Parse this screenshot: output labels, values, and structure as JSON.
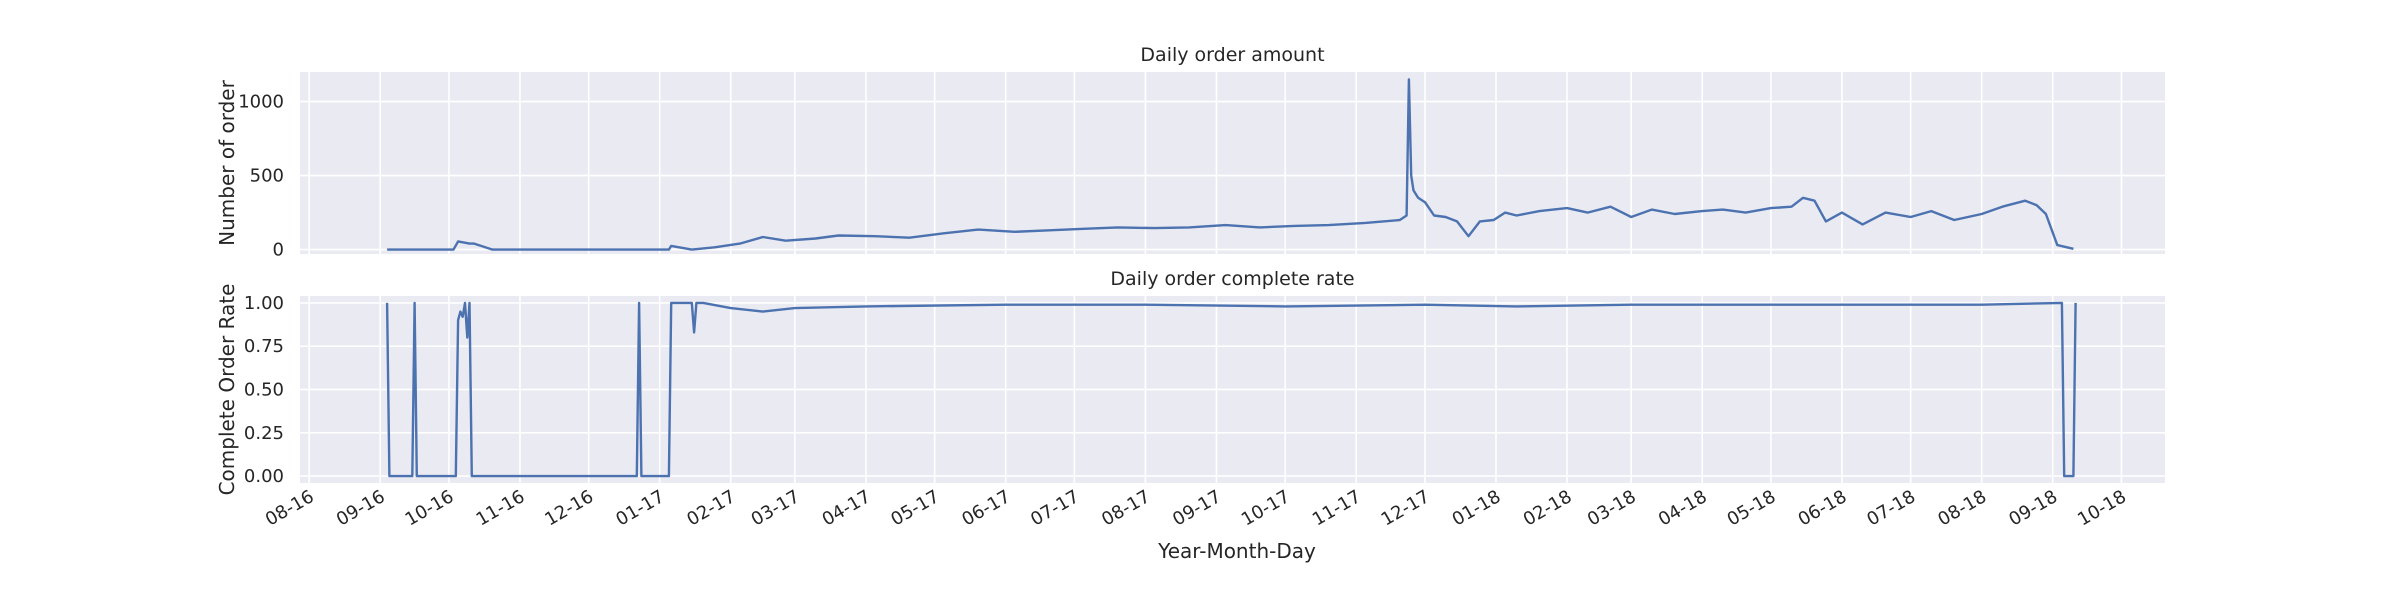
{
  "chart_data": [
    {
      "type": "line",
      "title": "Daily order amount",
      "xlabel": "",
      "ylabel": "Number of order",
      "ylim": [
        -30,
        1200
      ],
      "yticks": [
        0,
        500,
        1000
      ],
      "grid": true,
      "x": [
        "2016-09-04",
        "2016-10-03",
        "2016-10-05",
        "2016-10-10",
        "2016-10-12",
        "2016-10-20",
        "2016-12-23",
        "2017-01-05",
        "2017-01-06",
        "2017-01-15",
        "2017-01-25",
        "2017-02-05",
        "2017-02-15",
        "2017-02-25",
        "2017-03-10",
        "2017-03-20",
        "2017-04-05",
        "2017-04-20",
        "2017-05-05",
        "2017-05-20",
        "2017-06-05",
        "2017-06-20",
        "2017-07-05",
        "2017-07-20",
        "2017-08-05",
        "2017-08-20",
        "2017-09-05",
        "2017-09-20",
        "2017-10-05",
        "2017-10-20",
        "2017-11-05",
        "2017-11-20",
        "2017-11-23",
        "2017-11-24",
        "2017-11-25",
        "2017-11-26",
        "2017-11-28",
        "2017-12-01",
        "2017-12-05",
        "2017-12-10",
        "2017-12-15",
        "2017-12-20",
        "2017-12-25",
        "2017-12-31",
        "2018-01-05",
        "2018-01-10",
        "2018-01-20",
        "2018-02-01",
        "2018-02-10",
        "2018-02-20",
        "2018-03-01",
        "2018-03-10",
        "2018-03-20",
        "2018-04-01",
        "2018-04-10",
        "2018-04-20",
        "2018-05-01",
        "2018-05-10",
        "2018-05-15",
        "2018-05-20",
        "2018-05-25",
        "2018-06-01",
        "2018-06-10",
        "2018-06-20",
        "2018-07-01",
        "2018-07-10",
        "2018-07-20",
        "2018-08-01",
        "2018-08-10",
        "2018-08-20",
        "2018-08-25",
        "2018-08-29",
        "2018-09-03",
        "2018-09-10"
      ],
      "values": [
        0,
        0,
        55,
        40,
        40,
        0,
        0,
        0,
        25,
        0,
        15,
        40,
        85,
        60,
        75,
        95,
        90,
        80,
        110,
        135,
        120,
        130,
        140,
        150,
        145,
        150,
        165,
        150,
        160,
        165,
        180,
        200,
        230,
        1150,
        500,
        400,
        350,
        320,
        230,
        220,
        190,
        90,
        190,
        200,
        250,
        230,
        260,
        280,
        250,
        290,
        220,
        270,
        240,
        260,
        270,
        250,
        280,
        290,
        350,
        330,
        190,
        250,
        170,
        250,
        220,
        260,
        200,
        240,
        290,
        330,
        300,
        240,
        30,
        5
      ]
    },
    {
      "type": "line",
      "title": "Daily order complete rate",
      "xlabel": "Year-Month-Day",
      "ylabel": "Complete Order Rate",
      "ylim": [
        -0.04,
        1.04
      ],
      "yticks": [
        0.0,
        0.25,
        0.5,
        0.75,
        1.0
      ],
      "ytick_labels": [
        "0.00",
        "0.25",
        "0.50",
        "0.75",
        "1.00"
      ],
      "grid": true,
      "x": [
        "2016-09-04",
        "2016-09-05",
        "2016-09-15",
        "2016-09-16",
        "2016-09-17",
        "2016-10-04",
        "2016-10-05",
        "2016-10-06",
        "2016-10-07",
        "2016-10-08",
        "2016-10-09",
        "2016-10-10",
        "2016-10-11",
        "2016-10-12",
        "2016-12-22",
        "2016-12-23",
        "2016-12-24",
        "2017-01-05",
        "2017-01-06",
        "2017-01-15",
        "2017-01-16",
        "2017-01-17",
        "2017-01-20",
        "2017-02-01",
        "2017-02-15",
        "2017-03-01",
        "2017-04-01",
        "2017-06-01",
        "2017-08-01",
        "2017-10-01",
        "2017-12-01",
        "2018-01-10",
        "2018-03-01",
        "2018-06-01",
        "2018-08-01",
        "2018-09-05",
        "2018-09-06",
        "2018-09-10",
        "2018-09-11"
      ],
      "values": [
        1.0,
        0.0,
        0.0,
        1.0,
        0.0,
        0.0,
        0.9,
        0.95,
        0.92,
        1.0,
        0.8,
        1.0,
        0.0,
        0.0,
        0.0,
        1.0,
        0.0,
        0.0,
        1.0,
        1.0,
        0.83,
        1.0,
        1.0,
        0.97,
        0.95,
        0.97,
        0.98,
        0.99,
        0.99,
        0.98,
        0.99,
        0.98,
        0.99,
        0.99,
        0.99,
        1.0,
        0.0,
        0.0,
        1.0
      ]
    }
  ],
  "x_axis": {
    "tick_dates": [
      "2016-08-01",
      "2016-09-01",
      "2016-10-01",
      "2016-11-01",
      "2016-12-01",
      "2017-01-01",
      "2017-02-01",
      "2017-03-01",
      "2017-04-01",
      "2017-05-01",
      "2017-06-01",
      "2017-07-01",
      "2017-08-01",
      "2017-09-01",
      "2017-10-01",
      "2017-11-01",
      "2017-12-01",
      "2018-01-01",
      "2018-02-01",
      "2018-03-01",
      "2018-04-01",
      "2018-05-01",
      "2018-06-01",
      "2018-07-01",
      "2018-08-01",
      "2018-09-01",
      "2018-10-01"
    ],
    "tick_labels": [
      "08-16",
      "09-16",
      "10-16",
      "11-16",
      "12-16",
      "01-17",
      "02-17",
      "03-17",
      "04-17",
      "05-17",
      "06-17",
      "07-17",
      "08-17",
      "09-17",
      "10-17",
      "11-17",
      "12-17",
      "01-18",
      "02-18",
      "03-18",
      "04-18",
      "05-18",
      "06-18",
      "07-18",
      "08-18",
      "09-18",
      "10-18"
    ],
    "xlim": [
      "2016-07-28",
      "2018-10-20"
    ]
  },
  "colors": {
    "line": "#4c72b0",
    "axes_bg": "#eaeaf2",
    "grid": "#ffffff",
    "text": "#262626"
  }
}
